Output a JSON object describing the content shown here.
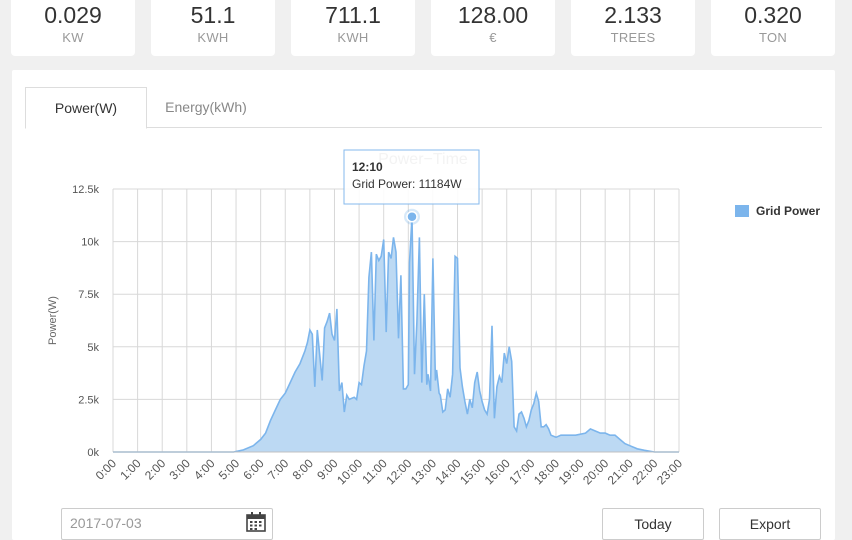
{
  "stats": [
    {
      "value": "0.029",
      "unit": "KW"
    },
    {
      "value": "51.1",
      "unit": "KWH"
    },
    {
      "value": "711.1",
      "unit": "KWH"
    },
    {
      "value": "128.00",
      "unit": "€"
    },
    {
      "value": "2.133",
      "unit": "TREES"
    },
    {
      "value": "0.320",
      "unit": "TON"
    }
  ],
  "tabs": [
    {
      "label": "Power(W)",
      "active": true
    },
    {
      "label": "Energy(kWh)",
      "active": false
    }
  ],
  "date": {
    "value": "2017-07-03"
  },
  "buttons": {
    "today": "Today",
    "export": "Export"
  },
  "tooltip": {
    "time": "12:10",
    "text": "Grid Power: 11184W"
  },
  "chart_data": {
    "type": "area",
    "title": "Power−Time",
    "ylabel": "Power(W)",
    "ylim": [
      0,
      12500
    ],
    "yticks": [
      0,
      2500,
      5000,
      7500,
      10000,
      12500
    ],
    "ytick_labels": [
      "0k",
      "2.5k",
      "5k",
      "7.5k",
      "10k",
      "12.5k"
    ],
    "xtick_labels": [
      "0:00",
      "1:00",
      "2:00",
      "3:00",
      "4:00",
      "5:00",
      "6:00",
      "7:00",
      "8:00",
      "9:00",
      "10:00",
      "11:00",
      "12:00",
      "13:00",
      "14:00",
      "15:00",
      "16:00",
      "17:00",
      "18:00",
      "19:00",
      "20:00",
      "21:00",
      "22:00",
      "23:00"
    ],
    "xlim": [
      0,
      23
    ],
    "grid": true,
    "legend": {
      "position": "top-right"
    },
    "color": "#7cb5ec",
    "fill": "#bcd9f3",
    "series": [
      {
        "name": "Grid Power",
        "points": [
          [
            0,
            0
          ],
          [
            4.9,
            0
          ],
          [
            5.3,
            100
          ],
          [
            5.7,
            300
          ],
          [
            6.0,
            600
          ],
          [
            6.2,
            900
          ],
          [
            6.4,
            1500
          ],
          [
            6.6,
            2000
          ],
          [
            6.8,
            2500
          ],
          [
            7.0,
            2800
          ],
          [
            7.2,
            3300
          ],
          [
            7.4,
            3800
          ],
          [
            7.6,
            4200
          ],
          [
            7.8,
            4800
          ],
          [
            7.9,
            5200
          ],
          [
            8.0,
            5800
          ],
          [
            8.1,
            5600
          ],
          [
            8.2,
            3100
          ],
          [
            8.3,
            5800
          ],
          [
            8.5,
            3400
          ],
          [
            8.6,
            5900
          ],
          [
            8.7,
            6200
          ],
          [
            8.8,
            6600
          ],
          [
            8.9,
            5600
          ],
          [
            9.0,
            5300
          ],
          [
            9.1,
            6800
          ],
          [
            9.2,
            2900
          ],
          [
            9.3,
            3300
          ],
          [
            9.4,
            1900
          ],
          [
            9.5,
            2700
          ],
          [
            9.6,
            2500
          ],
          [
            9.8,
            2600
          ],
          [
            9.9,
            2500
          ],
          [
            10.0,
            3300
          ],
          [
            10.1,
            3200
          ],
          [
            10.2,
            4100
          ],
          [
            10.3,
            4800
          ],
          [
            10.4,
            8300
          ],
          [
            10.5,
            9500
          ],
          [
            10.6,
            5300
          ],
          [
            10.7,
            9400
          ],
          [
            10.8,
            9100
          ],
          [
            10.9,
            9300
          ],
          [
            11.0,
            10100
          ],
          [
            11.1,
            5700
          ],
          [
            11.2,
            9500
          ],
          [
            11.3,
            9200
          ],
          [
            11.4,
            10200
          ],
          [
            11.5,
            9500
          ],
          [
            11.6,
            5400
          ],
          [
            11.7,
            8400
          ],
          [
            11.8,
            3000
          ],
          [
            11.9,
            3000
          ],
          [
            12.0,
            3200
          ],
          [
            12.05,
            9000
          ],
          [
            12.15,
            11184
          ],
          [
            12.25,
            3700
          ],
          [
            12.35,
            6200
          ],
          [
            12.45,
            10200
          ],
          [
            12.55,
            3300
          ],
          [
            12.65,
            7500
          ],
          [
            12.75,
            3200
          ],
          [
            12.8,
            3700
          ],
          [
            12.9,
            2900
          ],
          [
            13.0,
            9200
          ],
          [
            13.1,
            3400
          ],
          [
            13.15,
            3900
          ],
          [
            13.25,
            2800
          ],
          [
            13.3,
            2700
          ],
          [
            13.4,
            1900
          ],
          [
            13.5,
            2000
          ],
          [
            13.6,
            3000
          ],
          [
            13.7,
            2600
          ],
          [
            13.8,
            3700
          ],
          [
            13.9,
            9300
          ],
          [
            14.0,
            9200
          ],
          [
            14.1,
            4000
          ],
          [
            14.2,
            3100
          ],
          [
            14.3,
            2400
          ],
          [
            14.4,
            1800
          ],
          [
            14.5,
            2500
          ],
          [
            14.6,
            2100
          ],
          [
            14.7,
            3300
          ],
          [
            14.8,
            3800
          ],
          [
            14.9,
            2900
          ],
          [
            15.0,
            2400
          ],
          [
            15.1,
            2000
          ],
          [
            15.2,
            1800
          ],
          [
            15.3,
            2500
          ],
          [
            15.4,
            6000
          ],
          [
            15.5,
            1600
          ],
          [
            15.6,
            3100
          ],
          [
            15.7,
            3600
          ],
          [
            15.8,
            3300
          ],
          [
            15.9,
            4700
          ],
          [
            16.0,
            4200
          ],
          [
            16.1,
            5000
          ],
          [
            16.2,
            4300
          ],
          [
            16.3,
            1200
          ],
          [
            16.4,
            1000
          ],
          [
            16.5,
            1800
          ],
          [
            16.6,
            1900
          ],
          [
            16.7,
            1600
          ],
          [
            16.8,
            1200
          ],
          [
            16.9,
            1500
          ],
          [
            17.0,
            2000
          ],
          [
            17.1,
            2300
          ],
          [
            17.2,
            2800
          ],
          [
            17.3,
            2400
          ],
          [
            17.4,
            1200
          ],
          [
            17.5,
            1200
          ],
          [
            17.6,
            1300
          ],
          [
            17.7,
            1100
          ],
          [
            17.8,
            800
          ],
          [
            18.0,
            700
          ],
          [
            18.2,
            800
          ],
          [
            18.5,
            800
          ],
          [
            18.8,
            800
          ],
          [
            19.2,
            900
          ],
          [
            19.4,
            1100
          ],
          [
            19.6,
            1000
          ],
          [
            19.8,
            900
          ],
          [
            20.0,
            900
          ],
          [
            20.2,
            800
          ],
          [
            20.4,
            800
          ],
          [
            20.6,
            600
          ],
          [
            20.8,
            400
          ],
          [
            21.0,
            300
          ],
          [
            21.3,
            150
          ],
          [
            21.6,
            80
          ],
          [
            22.0,
            0
          ],
          [
            23.0,
            0
          ]
        ]
      }
    ]
  }
}
